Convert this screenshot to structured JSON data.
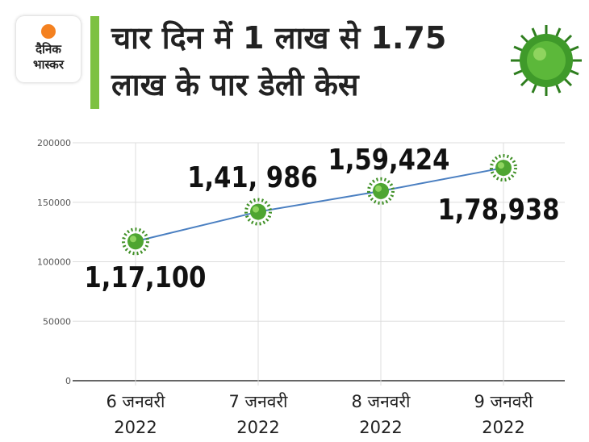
{
  "logo": "दैनिक भास्कर",
  "chart_data": {
    "type": "line",
    "title": "चार दिन में 1 लाख से 1.75 लाख के पार डेली केस",
    "categories": [
      "6 जनवरी 2022",
      "7 जनवरी 2022",
      "8 जनवरी 2022",
      "9 जनवरी 2022"
    ],
    "values": [
      117100,
      141986,
      159424,
      178938
    ],
    "value_labels": [
      "1,17,100",
      "1,41, 986",
      "1,59,424",
      "1,78,938"
    ],
    "color": "#4a7fc1",
    "ylim": [
      0,
      200000
    ],
    "yticks": [
      0,
      50000,
      100000,
      150000,
      200000
    ],
    "grid": true
  }
}
